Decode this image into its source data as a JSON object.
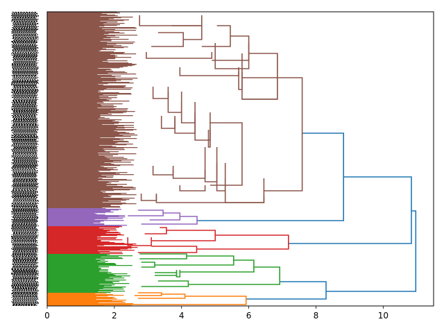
{
  "chart_data": {
    "type": "dendrogram",
    "title": "",
    "xlabel": "",
    "ylabel": "",
    "orientation": "right",
    "xlim": [
      0,
      11.5
    ],
    "ylim": [
      0,
      424
    ],
    "x_ticks": [
      0,
      2,
      4,
      6,
      8,
      10
    ],
    "x_tick_labels": [
      "0",
      "2",
      "4",
      "6",
      "8",
      "10"
    ],
    "leaf_labels_note": "dense unreadable leaf labels on y-axis",
    "colors": {
      "above_threshold": "#1f77b4",
      "orange": "#ff7f0e",
      "green": "#2ca02c",
      "red": "#d62728",
      "purple": "#9467bd",
      "brown": "#8c564b"
    },
    "clusters": [
      {
        "name": "brown",
        "color": "#8c564b",
        "leaf_range": [
          0,
          283
        ],
        "root_height": 7.59
      },
      {
        "name": "purple",
        "color": "#9467bd",
        "leaf_range": [
          283,
          309
        ],
        "root_height": 4.46
      },
      {
        "name": "red",
        "color": "#d62728",
        "leaf_range": [
          309,
          349
        ],
        "root_height": 7.18
      },
      {
        "name": "green",
        "color": "#2ca02c",
        "leaf_range": [
          349,
          405
        ],
        "root_height": 6.92
      },
      {
        "name": "orange",
        "color": "#ff7f0e",
        "leaf_range": [
          405,
          424
        ],
        "root_height": 5.92
      }
    ],
    "top_links": [
      {
        "height": 8.82,
        "children": [
          "brown",
          "purple"
        ]
      },
      {
        "height": 10.84,
        "children": [
          "brown+purple",
          "red"
        ]
      },
      {
        "height": 8.3,
        "children": [
          "green",
          "orange"
        ]
      },
      {
        "height": 10.97,
        "children": [
          "brown+purple+red",
          "green+orange"
        ]
      }
    ],
    "links": [
      {
        "c": "#1f77b4",
        "x": [
          7.59,
          8.82,
          8.82,
          4.46
        ],
        "y": [
          175,
          175,
          301,
          301
        ]
      },
      {
        "c": "#1f77b4",
        "x": [
          8.82,
          10.84,
          10.84,
          7.18
        ],
        "y": [
          238,
          238,
          334,
          334
        ]
      },
      {
        "c": "#1f77b4",
        "x": [
          6.92,
          8.3,
          8.3,
          5.92
        ],
        "y": [
          389,
          389,
          414,
          414
        ]
      },
      {
        "c": "#1f77b4",
        "x": [
          10.84,
          10.97,
          10.97,
          8.3
        ],
        "y": [
          287,
          287,
          403,
          403
        ]
      },
      {
        "c": "#8c564b",
        "x": [
          5.8,
          7.59,
          7.59,
          6.45
        ],
        "y": [
          95,
          95,
          258,
          258
        ]
      },
      {
        "c": "#8c564b",
        "x": [
          6.85,
          6.85,
          5.8,
          5.8
        ],
        "y": [
          60,
          126,
          126,
          60
        ]
      },
      {
        "c": "#8c564b",
        "x": [
          6.0,
          6.85,
          6.85,
          5.8
        ],
        "y": [
          60,
          60,
          126,
          126
        ]
      },
      {
        "c": "#8c564b",
        "x": [
          5.45,
          6.0,
          6.0,
          4.9
        ],
        "y": [
          35,
          35,
          70,
          70
        ]
      },
      {
        "c": "#8c564b",
        "x": [
          5.05,
          5.45,
          5.45,
          4.6
        ],
        "y": [
          20,
          20,
          50,
          50
        ]
      },
      {
        "c": "#8c564b",
        "x": [
          4.6,
          4.6,
          2.75,
          2.75
        ],
        "y": [
          5,
          20,
          20,
          5
        ]
      },
      {
        "c": "#8c564b",
        "x": [
          4.05,
          4.6,
          4.6,
          3.7
        ],
        "y": [
          40,
          40,
          20,
          20
        ]
      },
      {
        "c": "#8c564b",
        "x": [
          3.3,
          4.05,
          4.05,
          3.1
        ],
        "y": [
          30,
          30,
          50,
          50
        ]
      },
      {
        "c": "#8c564b",
        "x": [
          4.9,
          4.9,
          2.95,
          2.95
        ],
        "y": [
          58,
          67,
          67,
          58
        ]
      },
      {
        "c": "#8c564b",
        "x": [
          6.0,
          6.0,
          5.0,
          5.0
        ],
        "y": [
          45,
          82,
          82,
          45
        ]
      },
      {
        "c": "#8c564b",
        "x": [
          5.7,
          5.7,
          3.95,
          3.95
        ],
        "y": [
          80,
          92,
          92,
          80
        ]
      },
      {
        "c": "#8c564b",
        "x": [
          5.8,
          5.8,
          5.7,
          5.7
        ],
        "y": [
          86,
          112,
          112,
          86
        ]
      },
      {
        "c": "#8c564b",
        "x": [
          4.85,
          5.8,
          5.8,
          4.85
        ],
        "y": [
          160,
          160,
          250,
          250
        ]
      },
      {
        "c": "#8c564b",
        "x": [
          4.85,
          4.85,
          4.4,
          4.4
        ],
        "y": [
          145,
          185,
          185,
          145
        ]
      },
      {
        "c": "#8c564b",
        "x": [
          4.4,
          4.4,
          4.0,
          4.0
        ],
        "y": [
          130,
          160,
          160,
          130
        ]
      },
      {
        "c": "#8c564b",
        "x": [
          4.0,
          4.0,
          3.6,
          3.6
        ],
        "y": [
          115,
          145,
          145,
          115
        ]
      },
      {
        "c": "#8c564b",
        "x": [
          3.6,
          3.6,
          3.15,
          3.15
        ],
        "y": [
          108,
          125,
          125,
          108
        ]
      },
      {
        "c": "#8c564b",
        "x": [
          4.4,
          4.4,
          3.8,
          3.8
        ],
        "y": [
          153,
          175,
          175,
          153
        ]
      },
      {
        "c": "#8c564b",
        "x": [
          3.8,
          3.8,
          3.4,
          3.4
        ],
        "y": [
          150,
          168,
          168,
          150
        ]
      },
      {
        "c": "#8c564b",
        "x": [
          4.85,
          4.85,
          4.8,
          4.8
        ],
        "y": [
          170,
          195,
          195,
          170
        ]
      },
      {
        "c": "#8c564b",
        "x": [
          6.45,
          6.45,
          5.3,
          5.3
        ],
        "y": [
          240,
          275,
          275,
          240
        ]
      },
      {
        "c": "#8c564b",
        "x": [
          5.3,
          5.3,
          5.05,
          5.05
        ],
        "y": [
          218,
          258,
          258,
          218
        ]
      },
      {
        "c": "#8c564b",
        "x": [
          5.05,
          5.05,
          4.7,
          4.7
        ],
        "y": [
          195,
          245,
          245,
          195
        ]
      },
      {
        "c": "#8c564b",
        "x": [
          4.7,
          4.7,
          3.75,
          3.75
        ],
        "y": [
          228,
          240,
          240,
          228
        ]
      },
      {
        "c": "#8c564b",
        "x": [
          3.75,
          3.75,
          3.15,
          3.15
        ],
        "y": [
          222,
          235,
          235,
          222
        ]
      },
      {
        "c": "#8c564b",
        "x": [
          4.7,
          4.7,
          3.95,
          3.95
        ],
        "y": [
          250,
          258,
          258,
          250
        ]
      },
      {
        "c": "#8c564b",
        "x": [
          6.45,
          6.45,
          3.25,
          3.25
        ],
        "y": [
          265,
          275,
          275,
          265
        ]
      },
      {
        "c": "#8c564b",
        "x": [
          3.25,
          3.25,
          2.8,
          2.8
        ],
        "y": [
          262,
          272,
          272,
          262
        ]
      },
      {
        "c": "#9467bd",
        "x": [
          3.95,
          4.46,
          4.46,
          2.8
        ],
        "y": [
          295,
          295,
          306,
          306
        ]
      },
      {
        "c": "#9467bd",
        "x": [
          3.45,
          3.95,
          3.95,
          3.05
        ],
        "y": [
          290,
          290,
          300,
          300
        ]
      },
      {
        "c": "#9467bd",
        "x": [
          2.7,
          3.45,
          3.45,
          2.4
        ],
        "y": [
          286,
          286,
          294,
          294
        ]
      },
      {
        "c": "#d62728",
        "x": [
          5.0,
          7.18,
          7.18,
          4.45
        ],
        "y": [
          322,
          322,
          342,
          342
        ]
      },
      {
        "c": "#d62728",
        "x": [
          3.55,
          5.0,
          5.0,
          3.1
        ],
        "y": [
          315,
          315,
          330,
          330
        ]
      },
      {
        "c": "#d62728",
        "x": [
          3.35,
          3.55,
          3.55,
          2.9
        ],
        "y": [
          311,
          311,
          320,
          320
        ]
      },
      {
        "c": "#d62728",
        "x": [
          3.1,
          3.1,
          2.4,
          2.4
        ],
        "y": [
          325,
          337,
          337,
          325
        ]
      },
      {
        "c": "#d62728",
        "x": [
          3.1,
          4.45,
          4.45,
          2.7
        ],
        "y": [
          338,
          338,
          347,
          347
        ]
      },
      {
        "c": "#2ca02c",
        "x": [
          6.15,
          6.92,
          6.92,
          4.2
        ],
        "y": [
          368,
          368,
          393,
          393
        ]
      },
      {
        "c": "#2ca02c",
        "x": [
          5.55,
          6.15,
          6.15,
          3.95
        ],
        "y": [
          358,
          358,
          375,
          375
        ]
      },
      {
        "c": "#2ca02c",
        "x": [
          4.15,
          5.55,
          5.55,
          3.2
        ],
        "y": [
          352,
          352,
          365,
          365
        ]
      },
      {
        "c": "#2ca02c",
        "x": [
          2.75,
          4.15,
          4.15,
          2.75
        ],
        "y": [
          349,
          349,
          356,
          356
        ]
      },
      {
        "c": "#2ca02c",
        "x": [
          2.8,
          3.2,
          3.2,
          2.8
        ],
        "y": [
          361,
          361,
          368,
          368
        ]
      },
      {
        "c": "#2ca02c",
        "x": [
          3.95,
          3.95,
          3.85,
          3.85
        ],
        "y": [
          372,
          382,
          382,
          372
        ]
      },
      {
        "c": "#2ca02c",
        "x": [
          3.2,
          3.85,
          3.85,
          3.2
        ],
        "y": [
          376,
          376,
          380,
          380
        ]
      },
      {
        "c": "#2ca02c",
        "x": [
          3.3,
          4.2,
          4.2,
          2.8
        ],
        "y": [
          388,
          388,
          396,
          396
        ]
      },
      {
        "c": "#ff7f0e",
        "x": [
          4.1,
          5.92,
          5.92,
          1.6
        ],
        "y": [
          410,
          410,
          422,
          422
        ]
      },
      {
        "c": "#ff7f0e",
        "x": [
          3.4,
          4.1,
          4.1,
          2.7
        ],
        "y": [
          407,
          407,
          413,
          413
        ]
      },
      {
        "c": "#ff7f0e",
        "x": [
          2.7,
          3.4,
          3.4,
          2.6
        ],
        "y": [
          405,
          405,
          409,
          409
        ]
      }
    ],
    "leaf_fill": [
      {
        "color": "#8c564b",
        "from": 0,
        "to": 283,
        "width": 2.7
      },
      {
        "color": "#9467bd",
        "from": 283,
        "to": 309,
        "width": 2.4
      },
      {
        "color": "#d62728",
        "from": 309,
        "to": 349,
        "width": 2.7
      },
      {
        "color": "#2ca02c",
        "from": 349,
        "to": 405,
        "width": 2.6
      },
      {
        "color": "#ff7f0e",
        "from": 405,
        "to": 424,
        "width": 2.6
      }
    ]
  }
}
